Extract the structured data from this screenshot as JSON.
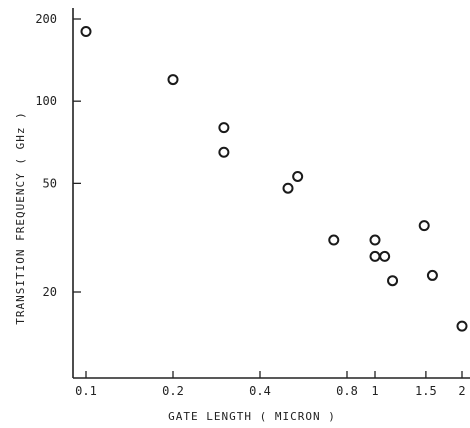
{
  "chart_data": {
    "type": "scatter",
    "title": "",
    "xlabel": "GATE  LENGTH  ( MICRON )",
    "ylabel": "TRANSITION  FREQUENCY ( GHz )",
    "x_scale": "log",
    "y_scale": "log",
    "xlim": [
      0.095,
      2.0
    ],
    "ylim": [
      12,
      210
    ],
    "x_ticks": [
      {
        "value": 0.1,
        "label": "0.1"
      },
      {
        "value": 0.2,
        "label": "0.2"
      },
      {
        "value": 0.4,
        "label": "0.4"
      },
      {
        "value": 0.8,
        "label": "0.8"
      },
      {
        "value": 1.0,
        "label": "1"
      },
      {
        "value": 1.5,
        "label": "1.5"
      },
      {
        "value": 2.0,
        "label": "2"
      }
    ],
    "y_ticks": [
      {
        "value": 200,
        "label": "200"
      },
      {
        "value": 100,
        "label": "100"
      },
      {
        "value": 50,
        "label": "50"
      },
      {
        "value": 20,
        "label": "20"
      }
    ],
    "grid": false,
    "marker": "open-circle",
    "points": [
      {
        "x": 0.1,
        "y": 180
      },
      {
        "x": 0.2,
        "y": 120
      },
      {
        "x": 0.3,
        "y": 80
      },
      {
        "x": 0.3,
        "y": 65
      },
      {
        "x": 0.5,
        "y": 48
      },
      {
        "x": 0.54,
        "y": 53
      },
      {
        "x": 0.72,
        "y": 31
      },
      {
        "x": 1.0,
        "y": 31
      },
      {
        "x": 1.0,
        "y": 27
      },
      {
        "x": 1.08,
        "y": 27
      },
      {
        "x": 1.15,
        "y": 22
      },
      {
        "x": 1.48,
        "y": 35
      },
      {
        "x": 1.58,
        "y": 23
      },
      {
        "x": 2.0,
        "y": 15
      }
    ]
  }
}
